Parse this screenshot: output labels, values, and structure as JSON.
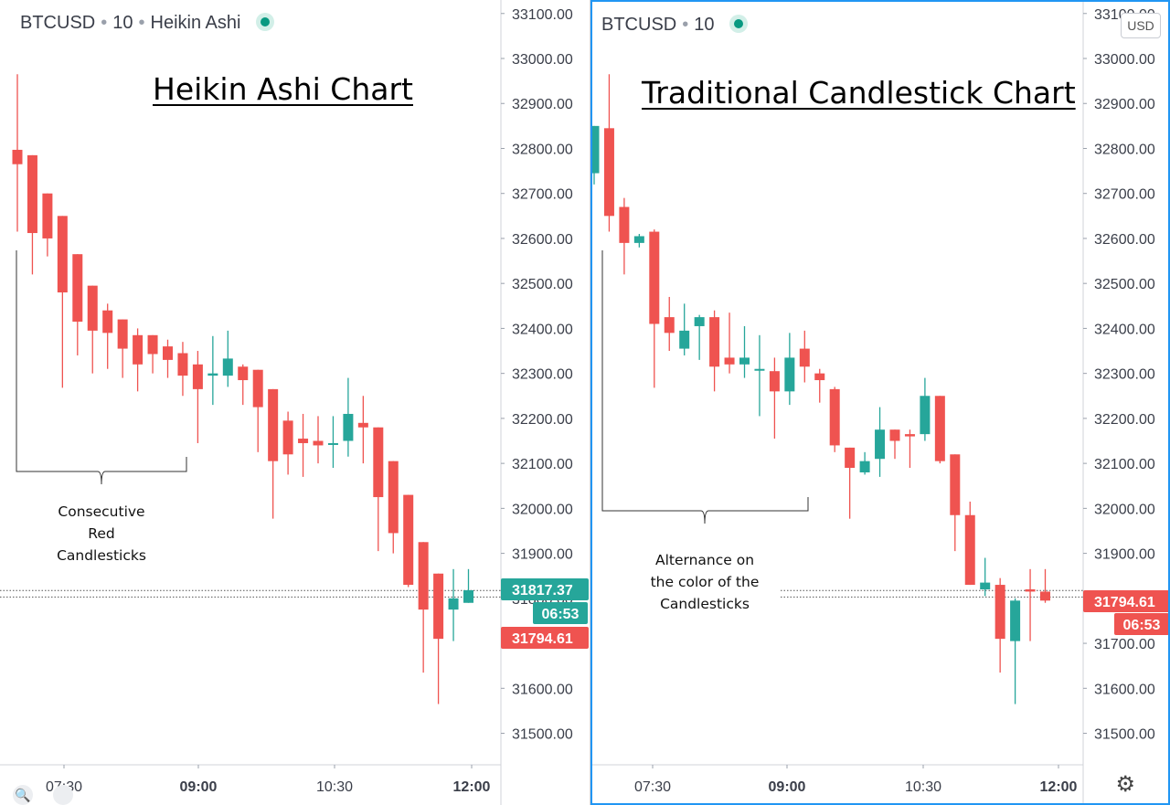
{
  "left": {
    "header": {
      "symbol": "BTCUSD",
      "interval": "10",
      "style": "Heikin Ashi"
    },
    "title": "Heikin Ashi Chart",
    "annotation": "Consecutive\nRed\nCandlesticks"
  },
  "right": {
    "header": {
      "symbol": "BTCUSD",
      "interval": "10"
    },
    "title": "Traditional Candlestick Chart",
    "annotation": "Alternance on\nthe color of the\nCandlesticks",
    "currency_button": "USD"
  },
  "colors": {
    "up": "#26a69a",
    "down": "#ef5350",
    "axis_text": "#3a3e49",
    "grid_border": "#d0d3d9",
    "selected_border": "#2196f3"
  },
  "chart_data": [
    {
      "type": "candlestick",
      "title": "Heikin Ashi Chart",
      "x_ticks": [
        "07:30",
        "09:00",
        "10:30",
        "12:00"
      ],
      "y_ticks": [
        31500,
        31600,
        31700,
        31800,
        31900,
        32000,
        32100,
        32200,
        32300,
        32400,
        32500,
        32600,
        32700,
        32800,
        32900,
        33000,
        33100
      ],
      "y_tick_labels": [
        "31500.00",
        "31600.00",
        "31700.00",
        "31800.00",
        "31900.00",
        "32000.00",
        "32100.00",
        "32200.00",
        "32300.00",
        "32400.00",
        "32500.00",
        "32600.00",
        "32700.00",
        "32800.00",
        "32900.00",
        "33000.00",
        "33100.00"
      ],
      "ylim": [
        31430,
        33130
      ],
      "candles": [
        {
          "o": 32797,
          "h": 32965,
          "l": 32615,
          "c": 32765
        },
        {
          "o": 32785,
          "h": 32785,
          "l": 32520,
          "c": 32612
        },
        {
          "o": 32700,
          "h": 32700,
          "l": 32560,
          "c": 32600
        },
        {
          "o": 32650,
          "h": 32650,
          "l": 32268,
          "c": 32480
        },
        {
          "o": 32565,
          "h": 32565,
          "l": 32340,
          "c": 32415
        },
        {
          "o": 32495,
          "h": 32495,
          "l": 32300,
          "c": 32395
        },
        {
          "o": 32440,
          "h": 32455,
          "l": 32310,
          "c": 32390
        },
        {
          "o": 32420,
          "h": 32420,
          "l": 32290,
          "c": 32355
        },
        {
          "o": 32385,
          "h": 32400,
          "l": 32260,
          "c": 32320
        },
        {
          "o": 32385,
          "h": 32385,
          "l": 32300,
          "c": 32343
        },
        {
          "o": 32360,
          "h": 32375,
          "l": 32290,
          "c": 32330
        },
        {
          "o": 32345,
          "h": 32370,
          "l": 32250,
          "c": 32295
        },
        {
          "o": 32320,
          "h": 32350,
          "l": 32145,
          "c": 32265
        },
        {
          "o": 32295,
          "h": 32383,
          "l": 32230,
          "c": 32300
        },
        {
          "o": 32295,
          "h": 32395,
          "l": 32270,
          "c": 32333
        },
        {
          "o": 32315,
          "h": 32320,
          "l": 32230,
          "c": 32285
        },
        {
          "o": 32308,
          "h": 32308,
          "l": 32125,
          "c": 32225
        },
        {
          "o": 32265,
          "h": 32265,
          "l": 31977,
          "c": 32105
        },
        {
          "o": 32195,
          "h": 32215,
          "l": 32075,
          "c": 32120
        },
        {
          "o": 32155,
          "h": 32210,
          "l": 32070,
          "c": 32145
        },
        {
          "o": 32150,
          "h": 32205,
          "l": 32100,
          "c": 32140
        },
        {
          "o": 32145,
          "h": 32205,
          "l": 32090,
          "c": 32145
        },
        {
          "o": 32150,
          "h": 32290,
          "l": 32115,
          "c": 32210
        },
        {
          "o": 32190,
          "h": 32250,
          "l": 32100,
          "c": 32180
        },
        {
          "o": 32180,
          "h": 32180,
          "l": 31905,
          "c": 32025
        },
        {
          "o": 32105,
          "h": 32105,
          "l": 31900,
          "c": 31945
        },
        {
          "o": 32030,
          "h": 32030,
          "l": 31825,
          "c": 31830
        },
        {
          "o": 31925,
          "h": 31925,
          "l": 31635,
          "c": 31775
        },
        {
          "o": 31855,
          "h": 31855,
          "l": 31565,
          "c": 31710
        },
        {
          "o": 31775,
          "h": 31865,
          "l": 31705,
          "c": 31800
        },
        {
          "o": 31790,
          "h": 31865,
          "l": 31790,
          "c": 31818
        }
      ],
      "price_labels": [
        {
          "value": 31817.37,
          "text": "31817.37",
          "color": "#26a69a"
        },
        {
          "value": 31794.61,
          "text": "31794.61",
          "color": "#ef5350"
        }
      ],
      "countdown": "06:53",
      "dotted_lines": [
        31817.37,
        31803
      ]
    },
    {
      "type": "candlestick",
      "title": "Traditional Candlestick Chart",
      "x_ticks": [
        "07:30",
        "09:00",
        "10:30",
        "12:00"
      ],
      "y_ticks": [
        31500,
        31600,
        31700,
        31800,
        31900,
        32000,
        32100,
        32200,
        32300,
        32400,
        32500,
        32600,
        32700,
        32800,
        32900,
        33000,
        33100
      ],
      "y_tick_labels": [
        "31500.00",
        "31600.00",
        "31700.00",
        "31800.00",
        "31900.00",
        "32000.00",
        "32100.00",
        "32200.00",
        "32300.00",
        "32400.00",
        "32500.00",
        "32600.00",
        "32700.00",
        "32800.00",
        "32900.00",
        "33000.00",
        "33100.00"
      ],
      "ylim": [
        31430,
        33130
      ],
      "candles": [
        {
          "o": 32745,
          "h": 32850,
          "l": 32720,
          "c": 32850
        },
        {
          "o": 32845,
          "h": 32965,
          "l": 32615,
          "c": 32650
        },
        {
          "o": 32670,
          "h": 32690,
          "l": 32520,
          "c": 32590
        },
        {
          "o": 32590,
          "h": 32610,
          "l": 32580,
          "c": 32605
        },
        {
          "o": 32615,
          "h": 32620,
          "l": 32268,
          "c": 32410
        },
        {
          "o": 32425,
          "h": 32470,
          "l": 32350,
          "c": 32390
        },
        {
          "o": 32355,
          "h": 32455,
          "l": 32340,
          "c": 32395
        },
        {
          "o": 32405,
          "h": 32430,
          "l": 32330,
          "c": 32425
        },
        {
          "o": 32425,
          "h": 32440,
          "l": 32260,
          "c": 32315
        },
        {
          "o": 32335,
          "h": 32435,
          "l": 32300,
          "c": 32320
        },
        {
          "o": 32320,
          "h": 32405,
          "l": 32290,
          "c": 32335
        },
        {
          "o": 32310,
          "h": 32385,
          "l": 32205,
          "c": 32310
        },
        {
          "o": 32305,
          "h": 32335,
          "l": 32155,
          "c": 32260
        },
        {
          "o": 32260,
          "h": 32390,
          "l": 32230,
          "c": 32335
        },
        {
          "o": 32355,
          "h": 32395,
          "l": 32280,
          "c": 32315
        },
        {
          "o": 32300,
          "h": 32310,
          "l": 32235,
          "c": 32285
        },
        {
          "o": 32265,
          "h": 32270,
          "l": 32125,
          "c": 32140
        },
        {
          "o": 32135,
          "h": 32135,
          "l": 31977,
          "c": 32090
        },
        {
          "o": 32080,
          "h": 32125,
          "l": 32075,
          "c": 32105
        },
        {
          "o": 32110,
          "h": 32225,
          "l": 32070,
          "c": 32175
        },
        {
          "o": 32175,
          "h": 32175,
          "l": 32110,
          "c": 32150
        },
        {
          "o": 32165,
          "h": 32175,
          "l": 32090,
          "c": 32160
        },
        {
          "o": 32165,
          "h": 32290,
          "l": 32150,
          "c": 32250
        },
        {
          "o": 32250,
          "h": 32250,
          "l": 32100,
          "c": 32105
        },
        {
          "o": 32120,
          "h": 32120,
          "l": 31905,
          "c": 31985
        },
        {
          "o": 31985,
          "h": 32015,
          "l": 31830,
          "c": 31830
        },
        {
          "o": 31820,
          "h": 31890,
          "l": 31805,
          "c": 31835
        },
        {
          "o": 31830,
          "h": 31845,
          "l": 31635,
          "c": 31710
        },
        {
          "o": 31705,
          "h": 31800,
          "l": 31565,
          "c": 31795
        },
        {
          "o": 31820,
          "h": 31865,
          "l": 31705,
          "c": 31815
        },
        {
          "o": 31815,
          "h": 31865,
          "l": 31790,
          "c": 31795
        }
      ],
      "price_labels": [
        {
          "value": 31794.61,
          "text": "31794.61",
          "color": "#ef5350"
        }
      ],
      "countdown": "06:53",
      "dotted_lines": [
        31817.37,
        31803
      ]
    }
  ]
}
